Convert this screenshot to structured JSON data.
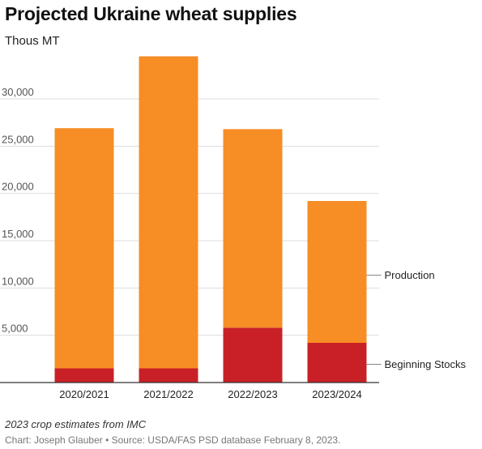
{
  "title": "Projected Ukraine wheat supplies",
  "subtitle": "Thous MT",
  "note": "2023 crop estimates from IMC",
  "credit": "Chart: Joseph Glauber • Source: USDA/FAS PSD database February 8, 2023.",
  "colors": {
    "production": "#f68d25",
    "beginning_stocks": "#c92027",
    "grid": "#dddddd",
    "axis": "#333333"
  },
  "chart_data": {
    "type": "bar",
    "stacked": true,
    "categories": [
      "2020/2021",
      "2021/2022",
      "2022/2023",
      "2023/2024"
    ],
    "series": [
      {
        "name": "Beginning Stocks",
        "values": [
          1500,
          1500,
          5800,
          4200
        ]
      },
      {
        "name": "Production",
        "values": [
          25400,
          33000,
          21000,
          15000
        ]
      }
    ],
    "yticks": [
      "5,000",
      "10,000",
      "15,000",
      "20,000",
      "25,000",
      "30,000"
    ],
    "ytick_values": [
      5000,
      10000,
      15000,
      20000,
      25000,
      30000
    ],
    "ylim": [
      0,
      35000
    ],
    "ylabel": "Thous MT",
    "grid": true,
    "legend": "right, inline labels"
  }
}
